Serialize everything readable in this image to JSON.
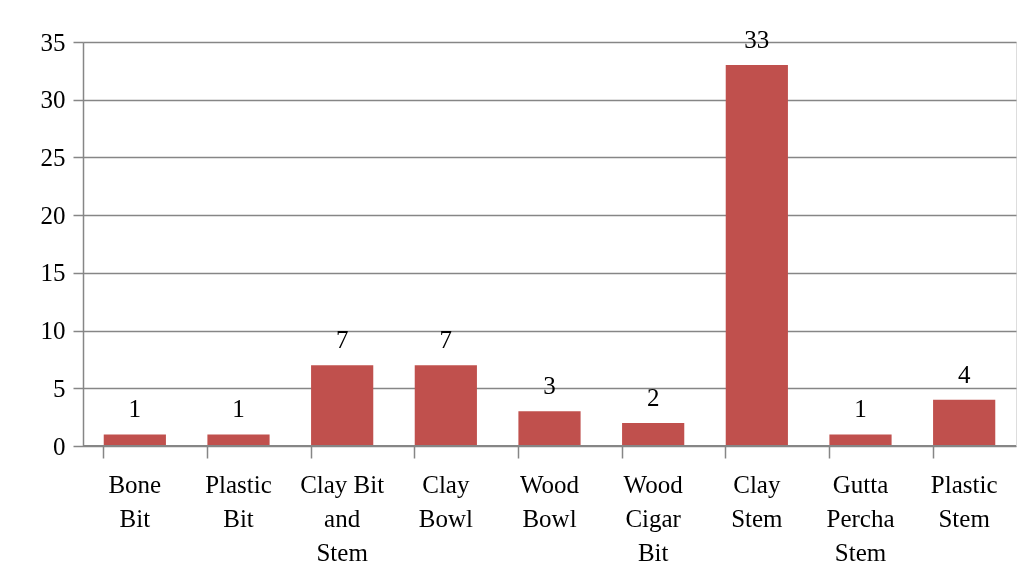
{
  "chart_data": {
    "type": "bar",
    "categories": [
      "Bone Bit",
      "Plastic Bit",
      "Clay Bit and Stem",
      "Clay Bowl",
      "Wood Bowl",
      "Wood Cigar Bit",
      "Clay Stem",
      "Gutta Percha Stem",
      "Plastic Stem"
    ],
    "values": [
      1,
      1,
      7,
      7,
      3,
      2,
      33,
      1,
      4
    ],
    "color": "#c0504d",
    "ylim": [
      0,
      35
    ],
    "yticks": [
      0,
      5,
      10,
      15,
      20,
      25,
      30,
      35
    ],
    "grid": "y",
    "data_labels": true
  }
}
